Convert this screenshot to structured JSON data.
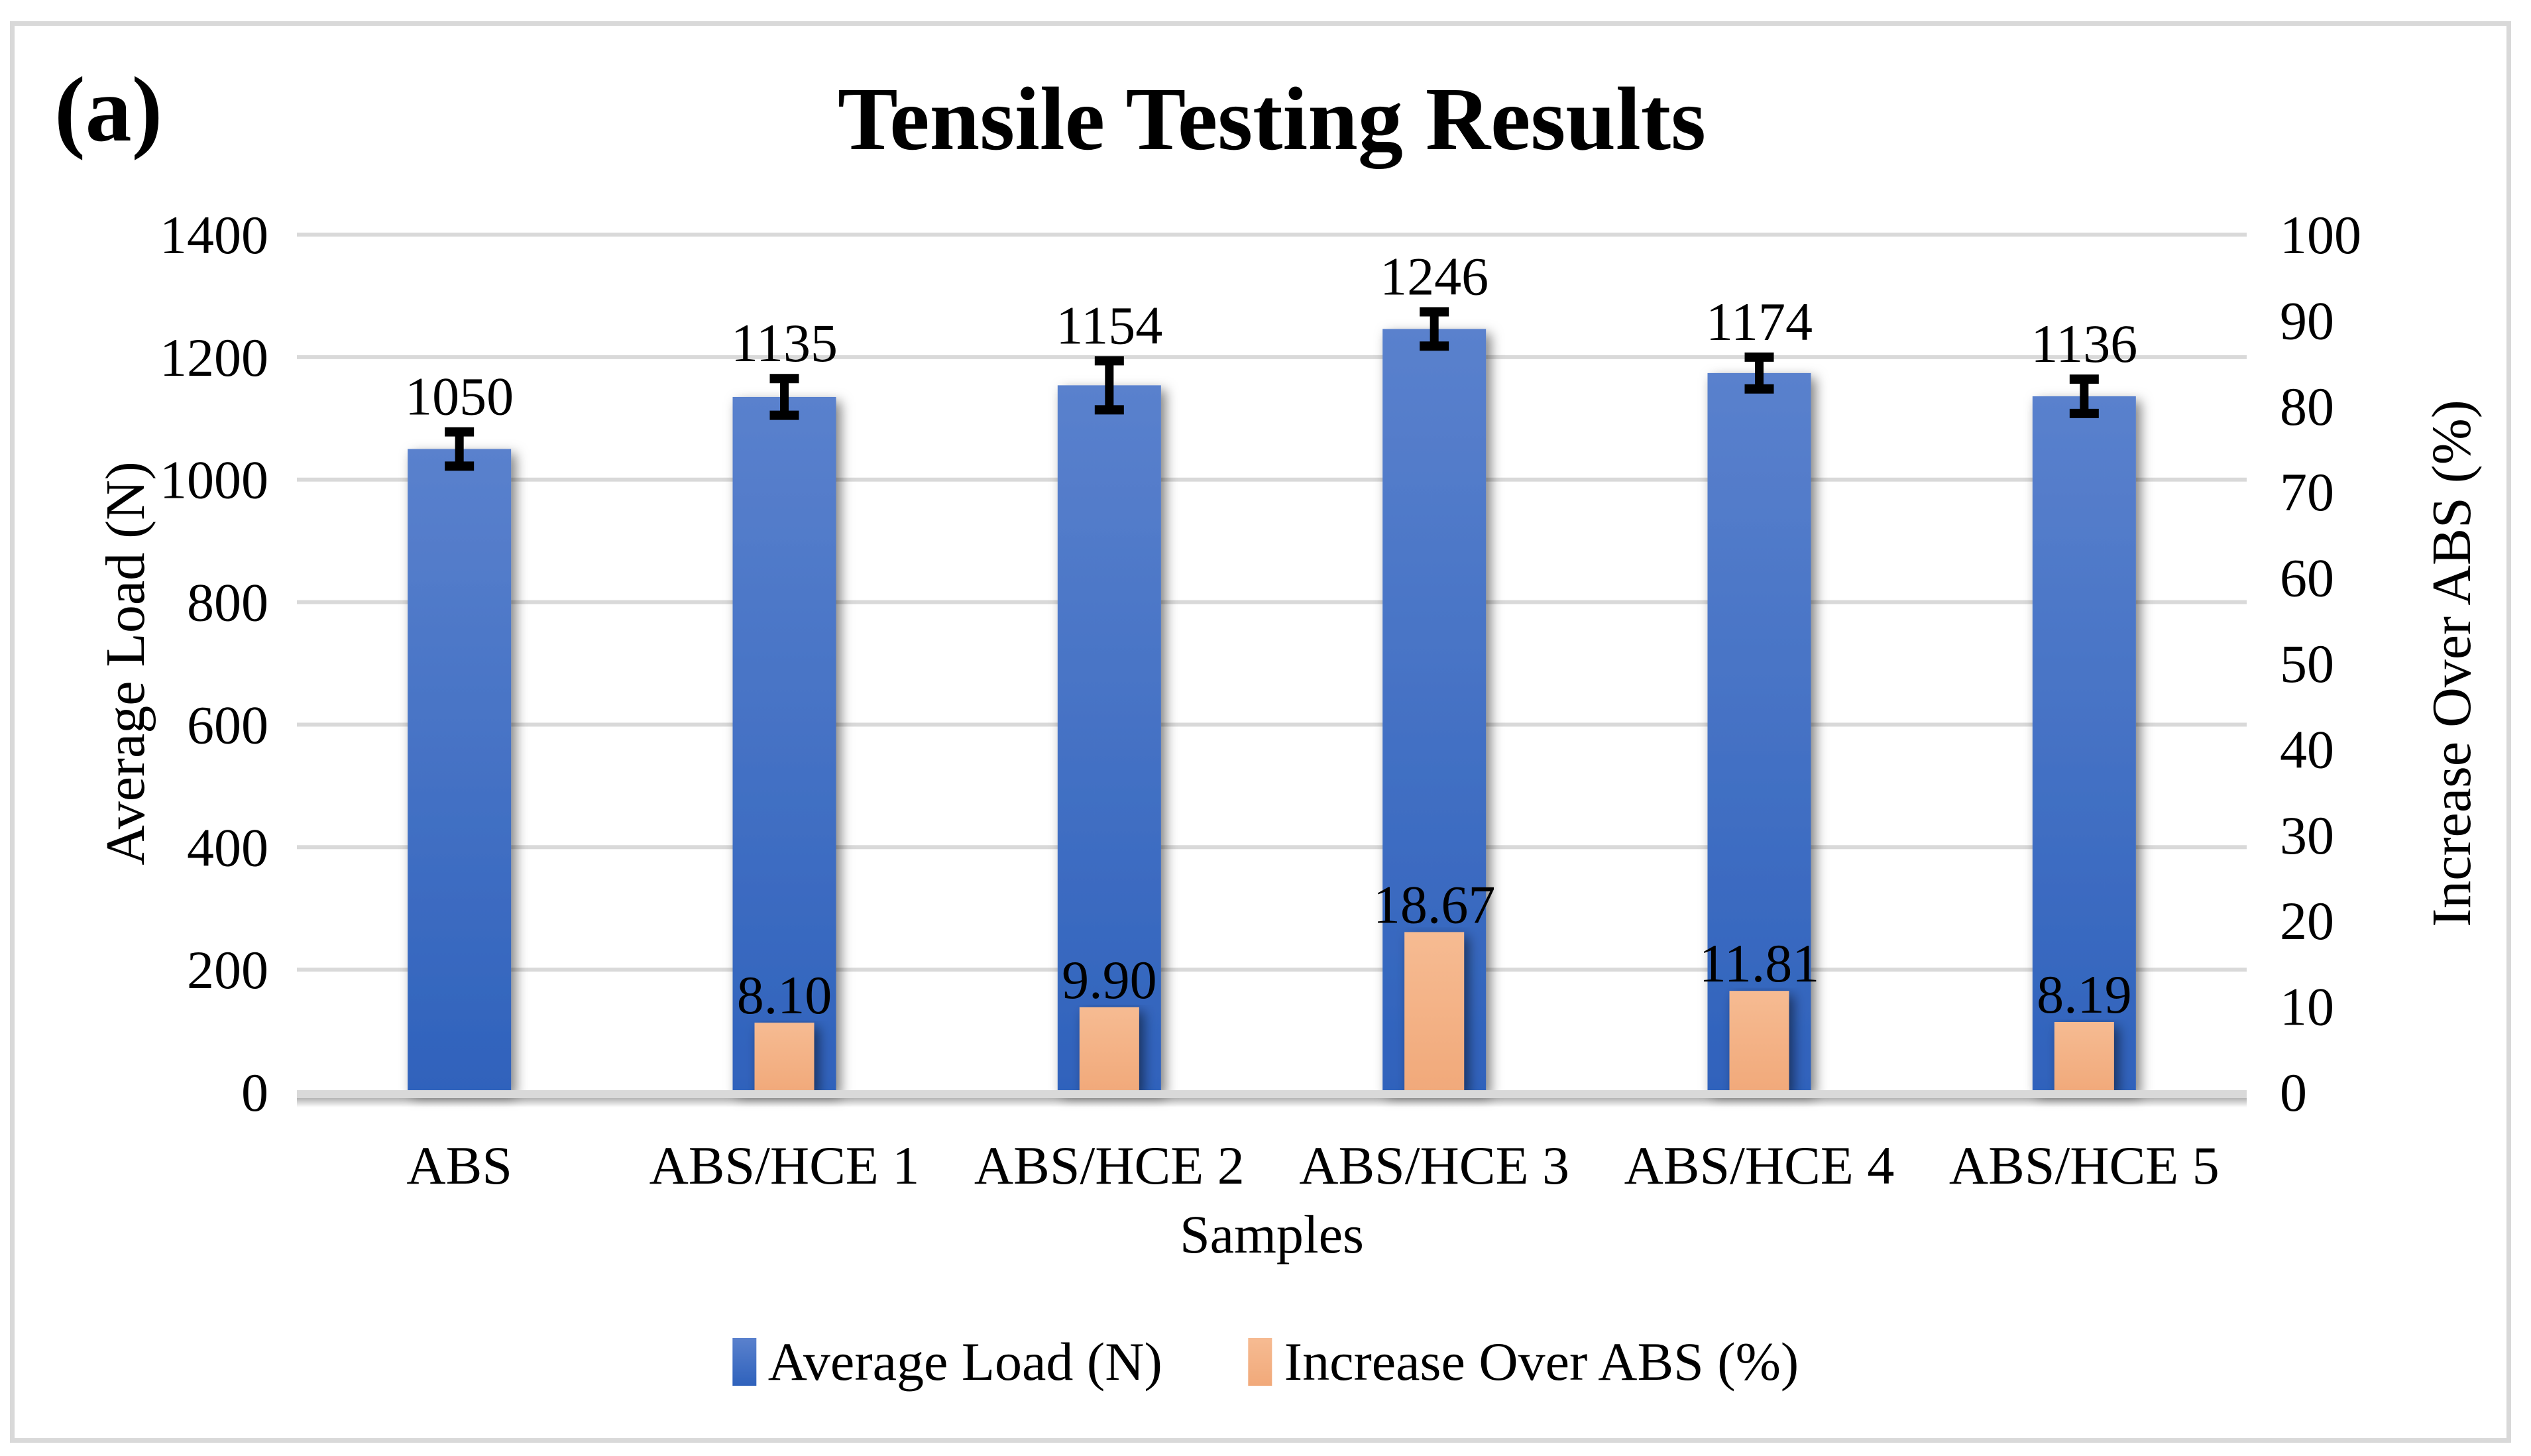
{
  "figure": {
    "panel_label": "(a)",
    "background": "#FFFFFF",
    "border_color": "#D9D9D9"
  },
  "chart_data": {
    "type": "bar",
    "title": "Tensile Testing Results",
    "categories": [
      "ABS",
      "ABS/HCE 1",
      "ABS/HCE 2",
      "ABS/HCE 3",
      "ABS/HCE 4",
      "ABS/HCE 5"
    ],
    "x_axis": {
      "title": "Samples"
    },
    "y_left": {
      "title": "Average Load (N)",
      "min": 0,
      "max": 1400,
      "step": 200,
      "ticks": [
        "0",
        "200",
        "400",
        "600",
        "800",
        "1000",
        "1200",
        "1400"
      ]
    },
    "y_right": {
      "title": "Increase Over ABS (%)",
      "min": 0,
      "max": 100,
      "step": 10,
      "ticks": [
        "0",
        "10",
        "20",
        "30",
        "40",
        "50",
        "60",
        "70",
        "80",
        "90",
        "100"
      ]
    },
    "grid": {
      "color": "#D9D9D9",
      "axis_line_color": "#D9D9D9",
      "grid_on": true
    },
    "legend_position": "bottom",
    "series": [
      {
        "name": "Average Load (N)",
        "axis": "left",
        "color": "#4472C4",
        "gradient_top": "#5A81CD",
        "gradient_bottom": "#2F62BC",
        "values": [
          1050,
          1135,
          1154,
          1246,
          1174,
          1136
        ],
        "data_labels": [
          "1050",
          "1135",
          "1154",
          "1246",
          "1174",
          "1136"
        ],
        "error_bars": [
          28,
          30,
          40,
          28,
          26,
          28
        ],
        "error_bar_color": "#000000"
      },
      {
        "name": "Increase Over ABS (%)",
        "axis": "right",
        "color": "#F4B183",
        "gradient_top": "#F6BB92",
        "gradient_bottom": "#F1A97A",
        "values": [
          null,
          8.1,
          9.9,
          18.67,
          11.81,
          8.19
        ],
        "data_labels": [
          "",
          "8.10",
          "9.90",
          "18.67",
          "11.81",
          "8.19"
        ]
      }
    ]
  }
}
